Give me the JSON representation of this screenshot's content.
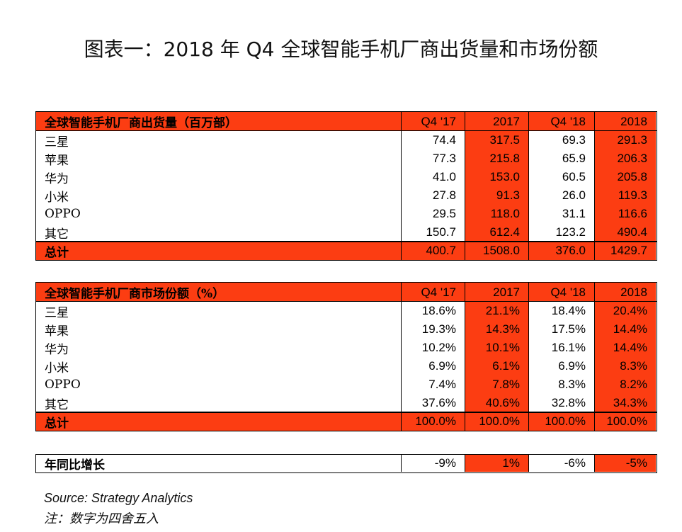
{
  "title": "图表一：2018 年 Q4 全球智能手机厂商出货量和市场份额",
  "tables": [
    {
      "header": [
        "全球智能手机厂商出货量（百万部）",
        "Q4 '17",
        "2017",
        "Q4 '18",
        "2018"
      ],
      "rows": [
        [
          "三星",
          "74.4",
          "317.5",
          "69.3",
          "291.3"
        ],
        [
          "苹果",
          "77.3",
          "215.8",
          "65.9",
          "206.3"
        ],
        [
          "华为",
          "41.0",
          "153.0",
          "60.5",
          "205.8"
        ],
        [
          "小米",
          "27.8",
          "91.3",
          "26.0",
          "119.3"
        ],
        [
          "OPPO",
          "29.5",
          "118.0",
          "31.1",
          "116.6"
        ],
        [
          "其它",
          "150.7",
          "612.4",
          "123.2",
          "490.4"
        ]
      ],
      "total": [
        "总计",
        "400.7",
        "1508.0",
        "376.0",
        "1429.7"
      ]
    },
    {
      "header": [
        "全球智能手机厂商市场份额（%）",
        "Q4 '17",
        "2017",
        "Q4 '18",
        "2018"
      ],
      "rows": [
        [
          "三星",
          "18.6%",
          "21.1%",
          "18.4%",
          "20.4%"
        ],
        [
          "苹果",
          "19.3%",
          "14.3%",
          "17.5%",
          "14.4%"
        ],
        [
          "华为",
          "10.2%",
          "10.1%",
          "16.1%",
          "14.4%"
        ],
        [
          "小米",
          "6.9%",
          "6.1%",
          "6.9%",
          "8.3%"
        ],
        [
          "OPPO",
          "7.4%",
          "7.8%",
          "8.3%",
          "8.2%"
        ],
        [
          "其它",
          "37.6%",
          "40.6%",
          "32.8%",
          "34.3%"
        ]
      ],
      "total": [
        "总计",
        "100.0%",
        "100.0%",
        "100.0%",
        "100.0%"
      ]
    }
  ],
  "growth": [
    "年同比增长",
    "-9%",
    "1%",
    "-6%",
    "-5%"
  ],
  "source": "Source: Strategy Analytics",
  "note": "注：数字为四舍五入"
}
